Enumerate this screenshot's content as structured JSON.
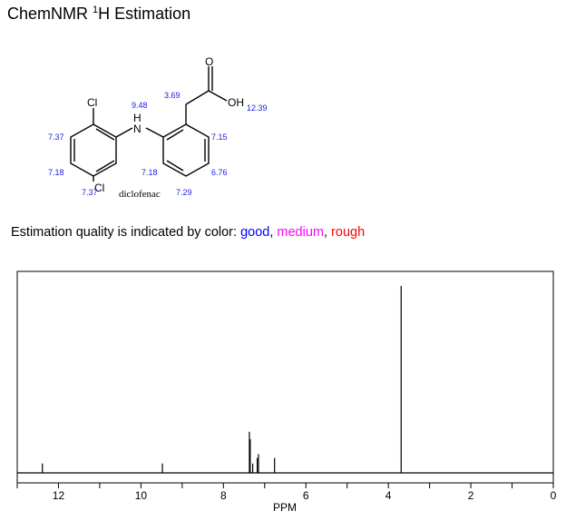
{
  "header": {
    "title_prefix": "ChemNMR ",
    "title_sup": "1",
    "title_suffix": "H Estimation"
  },
  "molecule": {
    "name": "diclofenac",
    "atoms": {
      "cl_top": "Cl",
      "nh": "H",
      "n": "N",
      "cl_bottom": "Cl",
      "carbonyl_o": "O",
      "hydroxyl": "OH"
    },
    "shifts": {
      "nh": "9.48",
      "ch2": "3.69",
      "cooh": "12.39",
      "left_a": "7.37",
      "left_b": "7.18",
      "left_c": "7.37",
      "right_a": "7.15",
      "right_b": "6.76",
      "right_c": "7.29",
      "right_d": "7.18"
    }
  },
  "quality": {
    "prefix": "Estimation quality is indicated by color: ",
    "good": "good",
    "sep1": ", ",
    "medium": "medium",
    "sep2": ", ",
    "rough": "rough",
    "colors": {
      "good": "#0000ff",
      "medium": "#ff00ff",
      "rough": "#ff0000"
    }
  },
  "chart_data": {
    "type": "line",
    "xlabel": "PPM",
    "xlim": [
      13,
      0
    ],
    "x_reversed": true,
    "ylim": [
      0,
      1
    ],
    "grid": false,
    "xticks": [
      12,
      10,
      8,
      6,
      4,
      2,
      0
    ],
    "peaks": [
      {
        "ppm": 12.39,
        "intensity": 0.05
      },
      {
        "ppm": 9.48,
        "intensity": 0.05
      },
      {
        "ppm": 7.37,
        "intensity": 0.22
      },
      {
        "ppm": 7.35,
        "intensity": 0.18
      },
      {
        "ppm": 7.29,
        "intensity": 0.05
      },
      {
        "ppm": 7.18,
        "intensity": 0.08
      },
      {
        "ppm": 7.15,
        "intensity": 0.1
      },
      {
        "ppm": 6.76,
        "intensity": 0.08
      },
      {
        "ppm": 3.69,
        "intensity": 1.0
      }
    ]
  }
}
